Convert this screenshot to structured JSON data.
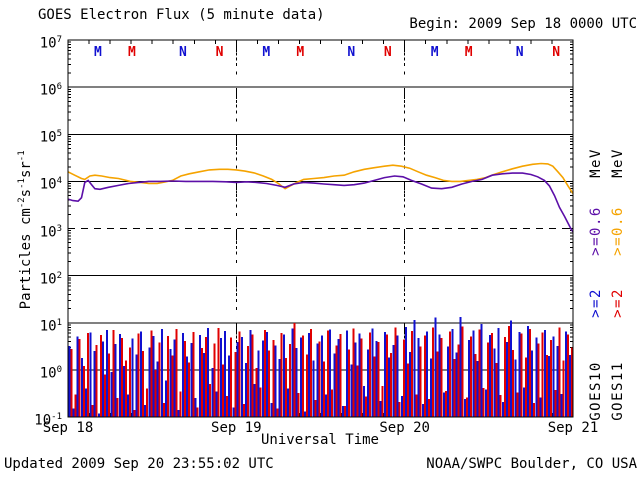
{
  "header": {
    "title": "GOES Electron Flux (5 minute data)",
    "begin_label": "Begin: 2009 Sep 18 0000 UTC"
  },
  "footer": {
    "updated": "Updated 2009 Sep 20 23:55:02 UTC",
    "source": "NOAA/SWPC Boulder, CO USA"
  },
  "colors": {
    "orange": "#F5A300",
    "purple": "#5C0FA8",
    "blue": "#1010D0",
    "red": "#E00000",
    "black": "#000000",
    "background": "#FFFFFF"
  },
  "chart_data": {
    "type": "line",
    "title": "GOES Electron Flux (5 minute data)",
    "xlabel": "Universal Time",
    "ylabel_parts": [
      "Particles cm",
      "-2",
      "s",
      "-1",
      "sr",
      "-1"
    ],
    "x_tick_labels": [
      "Sep 18",
      "Sep 19",
      "Sep 20",
      "Sep 21"
    ],
    "x_range_days": [
      0,
      3
    ],
    "x_minor_tick_hours": 3,
    "y_axis_exponents": [
      7,
      6,
      5,
      4,
      3,
      2,
      1,
      0,
      -1
    ],
    "y_log_range": [
      -1,
      7
    ],
    "solid_gridline_exponents": [
      6,
      5,
      4,
      2,
      1,
      0
    ],
    "dashed_threshold_exponent": 3,
    "day_boundary_dotted_lines_at_days": [
      1,
      2
    ],
    "satellite_markers": [
      {
        "day": 0,
        "frac": 0.178,
        "letter": "M",
        "sat": "GOES10"
      },
      {
        "day": 0,
        "frac": 0.38,
        "letter": "M",
        "sat": "GOES11"
      },
      {
        "day": 0,
        "frac": 0.683,
        "letter": "N",
        "sat": "GOES10"
      },
      {
        "day": 0,
        "frac": 0.9,
        "letter": "N",
        "sat": "GOES11"
      },
      {
        "day": 1,
        "frac": 0.178,
        "letter": "M",
        "sat": "GOES10"
      },
      {
        "day": 1,
        "frac": 0.38,
        "letter": "M",
        "sat": "GOES11"
      },
      {
        "day": 1,
        "frac": 0.683,
        "letter": "N",
        "sat": "GOES10"
      },
      {
        "day": 1,
        "frac": 0.9,
        "letter": "N",
        "sat": "GOES11"
      },
      {
        "day": 2,
        "frac": 0.178,
        "letter": "M",
        "sat": "GOES10"
      },
      {
        "day": 2,
        "frac": 0.38,
        "letter": "M",
        "sat": "GOES11"
      },
      {
        "day": 2,
        "frac": 0.683,
        "letter": "N",
        "sat": "GOES10"
      },
      {
        "day": 2,
        "frac": 0.9,
        "letter": "N",
        "sat": "GOES11"
      }
    ],
    "marker_color_by_sat": {
      "GOES10": "blue",
      "GOES11": "red"
    },
    "series": [
      {
        "name": "GOES11 >=0.6 MeV",
        "style": "line",
        "color": "orange",
        "points": [
          [
            0.0,
            16000
          ],
          [
            0.04,
            13500
          ],
          [
            0.08,
            11500
          ],
          [
            0.1,
            11000
          ],
          [
            0.13,
            13000
          ],
          [
            0.16,
            13500
          ],
          [
            0.2,
            13000
          ],
          [
            0.25,
            12000
          ],
          [
            0.3,
            11500
          ],
          [
            0.37,
            10000
          ],
          [
            0.43,
            9500
          ],
          [
            0.48,
            9000
          ],
          [
            0.53,
            9000
          ],
          [
            0.58,
            9800
          ],
          [
            0.62,
            10500
          ],
          [
            0.67,
            13000
          ],
          [
            0.72,
            14500
          ],
          [
            0.78,
            16000
          ],
          [
            0.84,
            17500
          ],
          [
            0.9,
            18000
          ],
          [
            0.95,
            18000
          ],
          [
            1.0,
            17500
          ],
          [
            1.05,
            16500
          ],
          [
            1.11,
            15000
          ],
          [
            1.16,
            13000
          ],
          [
            1.21,
            11000
          ],
          [
            1.25,
            9000
          ],
          [
            1.29,
            7000
          ],
          [
            1.32,
            8000
          ],
          [
            1.36,
            9500
          ],
          [
            1.4,
            11000
          ],
          [
            1.46,
            11500
          ],
          [
            1.52,
            12000
          ],
          [
            1.58,
            13000
          ],
          [
            1.64,
            13500
          ],
          [
            1.7,
            16000
          ],
          [
            1.76,
            18000
          ],
          [
            1.82,
            19500
          ],
          [
            1.88,
            21000
          ],
          [
            1.93,
            22000
          ],
          [
            1.98,
            21000
          ],
          [
            2.03,
            19000
          ],
          [
            2.08,
            16000
          ],
          [
            2.13,
            13500
          ],
          [
            2.18,
            12000
          ],
          [
            2.23,
            10500
          ],
          [
            2.28,
            10000
          ],
          [
            2.33,
            10000
          ],
          [
            2.38,
            10500
          ],
          [
            2.43,
            11000
          ],
          [
            2.48,
            12000
          ],
          [
            2.53,
            14000
          ],
          [
            2.58,
            16000
          ],
          [
            2.64,
            18500
          ],
          [
            2.7,
            21000
          ],
          [
            2.76,
            23000
          ],
          [
            2.81,
            24000
          ],
          [
            2.85,
            23500
          ],
          [
            2.88,
            21000
          ],
          [
            2.91,
            16000
          ],
          [
            2.94,
            12000
          ],
          [
            2.97,
            8000
          ],
          [
            3.0,
            5500
          ]
        ]
      },
      {
        "name": "GOES10 >=0.6 MeV",
        "style": "line",
        "color": "purple",
        "points": [
          [
            0.0,
            4200
          ],
          [
            0.03,
            3900
          ],
          [
            0.06,
            3800
          ],
          [
            0.08,
            4500
          ],
          [
            0.1,
            9500
          ],
          [
            0.12,
            10500
          ],
          [
            0.14,
            8500
          ],
          [
            0.16,
            7000
          ],
          [
            0.19,
            6800
          ],
          [
            0.24,
            7500
          ],
          [
            0.3,
            8200
          ],
          [
            0.36,
            9000
          ],
          [
            0.42,
            9500
          ],
          [
            0.48,
            10000
          ],
          [
            0.55,
            10000
          ],
          [
            0.62,
            10200
          ],
          [
            0.7,
            10000
          ],
          [
            0.78,
            10000
          ],
          [
            0.86,
            10000
          ],
          [
            0.94,
            9800
          ],
          [
            1.0,
            9500
          ],
          [
            1.06,
            9800
          ],
          [
            1.12,
            9500
          ],
          [
            1.18,
            9000
          ],
          [
            1.24,
            8200
          ],
          [
            1.29,
            7500
          ],
          [
            1.34,
            8800
          ],
          [
            1.4,
            9500
          ],
          [
            1.46,
            9200
          ],
          [
            1.52,
            8800
          ],
          [
            1.58,
            8500
          ],
          [
            1.64,
            8200
          ],
          [
            1.7,
            8500
          ],
          [
            1.76,
            9200
          ],
          [
            1.82,
            10500
          ],
          [
            1.88,
            12000
          ],
          [
            1.94,
            13000
          ],
          [
            1.99,
            12500
          ],
          [
            2.04,
            10500
          ],
          [
            2.1,
            8800
          ],
          [
            2.16,
            7200
          ],
          [
            2.22,
            7000
          ],
          [
            2.28,
            7500
          ],
          [
            2.34,
            8800
          ],
          [
            2.4,
            10000
          ],
          [
            2.46,
            11000
          ],
          [
            2.52,
            13500
          ],
          [
            2.58,
            14500
          ],
          [
            2.64,
            15000
          ],
          [
            2.7,
            15000
          ],
          [
            2.75,
            14000
          ],
          [
            2.79,
            12500
          ],
          [
            2.83,
            10500
          ],
          [
            2.86,
            8000
          ],
          [
            2.89,
            5000
          ],
          [
            2.92,
            2800
          ],
          [
            2.95,
            1800
          ],
          [
            2.97,
            1300
          ],
          [
            2.99,
            950
          ],
          [
            3.0,
            850
          ]
        ]
      },
      {
        "name": "GOES10 >=2 MeV",
        "style": "spikes",
        "color": "blue",
        "baseline": 0.1,
        "values": [
          3.2,
          0.15,
          5.1,
          1.8,
          0.4,
          6.2,
          2.5,
          0.12,
          4.0,
          7.1,
          0.9,
          3.5,
          5.8,
          1.2,
          0.3,
          4.6,
          2.1,
          6.5,
          0.18,
          3.0,
          5.2,
          1.5,
          7.3,
          0.6,
          2.8,
          4.4,
          0.14,
          6.0,
          1.9,
          3.7,
          0.25,
          5.5,
          2.3,
          7.8,
          1.1,
          0.35,
          4.8,
          6.7,
          2.0,
          0.16,
          3.9,
          5.0,
          1.4,
          7.0,
          0.5,
          2.6,
          4.2,
          6.3,
          0.2,
          3.3,
          1.7,
          5.7,
          0.4,
          7.5,
          2.9,
          4.9,
          0.13,
          6.1,
          1.6,
          3.6,
          5.3,
          0.3,
          7.2,
          2.2,
          4.5,
          0.17,
          6.8,
          1.3,
          3.8,
          5.9,
          0.45,
          2.7,
          7.6,
          4.1,
          0.22,
          6.4,
          1.85,
          3.4,
          5.4,
          0.28,
          8.2,
          2.4,
          11.5,
          4.7,
          0.19,
          6.6,
          1.75,
          12.8,
          5.6,
          0.33,
          3.1,
          7.4,
          2.35,
          13.2,
          0.24,
          4.3,
          6.9,
          1.55,
          9.5,
          0.38,
          5.45,
          2.85,
          7.7,
          0.21,
          3.95,
          11.2,
          1.65,
          6.35,
          0.42,
          8.5,
          2.55,
          4.85,
          0.26,
          7.05,
          1.95,
          5.15,
          3.25,
          0.31,
          6.55,
          2.05
        ]
      },
      {
        "name": "GOES11 >=2 MeV",
        "style": "spikes",
        "color": "red",
        "baseline": 0.1,
        "values": [
          2.8,
          0.3,
          4.5,
          1.2,
          6.0,
          0.18,
          3.4,
          5.5,
          0.8,
          2.2,
          7.0,
          0.25,
          4.8,
          1.6,
          3.0,
          0.14,
          5.9,
          2.5,
          0.4,
          6.8,
          1.0,
          3.8,
          0.2,
          5.2,
          2.0,
          7.4,
          0.35,
          4.1,
          1.45,
          6.3,
          0.16,
          2.9,
          5.0,
          0.5,
          3.6,
          7.8,
          1.3,
          0.28,
          4.9,
          2.4,
          6.6,
          0.19,
          3.2,
          5.7,
          1.1,
          0.42,
          7.1,
          2.6,
          4.3,
          0.15,
          6.1,
          1.8,
          3.5,
          9.8,
          0.32,
          5.4,
          2.1,
          7.3,
          0.23,
          4.0,
          1.5,
          6.9,
          0.38,
          3.3,
          5.8,
          0.17,
          2.7,
          7.6,
          1.25,
          4.6,
          0.27,
          6.2,
          1.9,
          3.9,
          0.45,
          5.6,
          2.3,
          8.0,
          0.21,
          4.4,
          1.35,
          6.7,
          0.3,
          3.1,
          5.3,
          0.24,
          7.9,
          2.45,
          4.7,
          0.36,
          6.45,
          1.7,
          3.45,
          8.3,
          0.26,
          5.1,
          2.15,
          7.25,
          0.41,
          3.85,
          6.05,
          1.4,
          0.29,
          4.95,
          8.6,
          2.65,
          0.33,
          5.95,
          1.85,
          7.45,
          0.2,
          3.65,
          6.25,
          2.05,
          4.35,
          0.37,
          7.85,
          1.6,
          5.65,
          2.95
        ]
      }
    ],
    "right_legend": {
      "columns": [
        {
          "name": "GOES10",
          "parts": [
            {
              "text": "MeV",
              "color": "black"
            },
            {
              "text": ">=0.6",
              "color": "purple"
            },
            {
              "text": ">=2",
              "color": "blue"
            },
            {
              "text": "GOES10",
              "color": "black"
            }
          ]
        },
        {
          "name": "GOES11",
          "parts": [
            {
              "text": "MeV",
              "color": "black"
            },
            {
              "text": ">=0.6",
              "color": "orange"
            },
            {
              "text": ">=2",
              "color": "red"
            },
            {
              "text": "GOES11",
              "color": "black"
            }
          ]
        }
      ]
    }
  }
}
